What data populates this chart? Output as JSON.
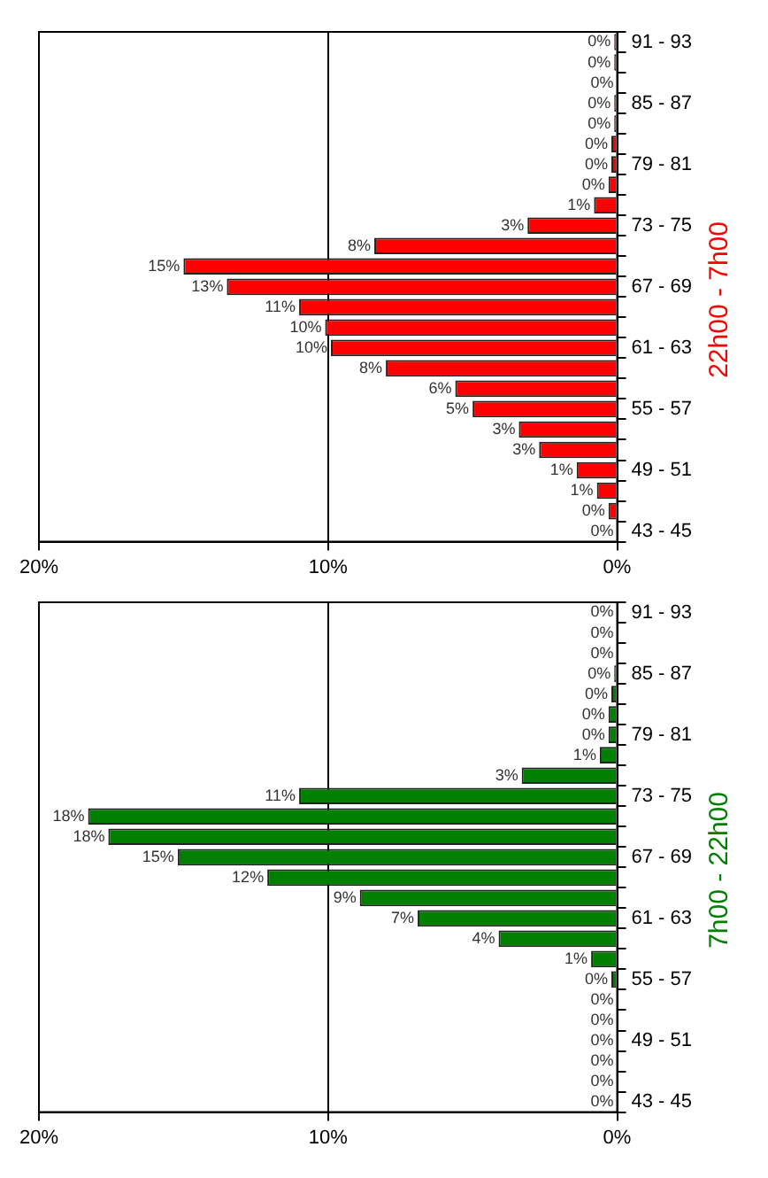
{
  "chart_data": [
    {
      "type": "bar",
      "orientation": "horizontal",
      "title": "22h00 - 7h00",
      "categories": [
        "91 - 93",
        null,
        null,
        "85 - 87",
        null,
        null,
        "79 - 81",
        null,
        null,
        "73 - 75",
        null,
        null,
        "67 - 69",
        null,
        null,
        "61 - 63",
        null,
        null,
        "55 - 57",
        null,
        null,
        "49 - 51",
        null,
        null,
        "43 - 45"
      ],
      "series": [
        {
          "color": "#ff0000",
          "values": [
            0.1,
            0.1,
            0,
            0.1,
            0.1,
            0.2,
            0.2,
            0.3,
            0.8,
            3.1,
            8.4,
            15.0,
            13.5,
            11.0,
            10.1,
            9.9,
            8.0,
            5.6,
            5.0,
            3.4,
            2.7,
            1.4,
            0.7,
            0.3,
            0
          ],
          "value_labels": [
            "0%",
            "0%",
            "0%",
            "0%",
            "0%",
            "0%",
            "0%",
            "0%",
            "1%",
            "3%",
            "8%",
            "15%",
            "13%",
            "11%",
            "10%",
            "10%",
            "8%",
            "6%",
            "5%",
            "3%",
            "3%",
            "1%",
            "1%",
            "0%",
            "0%"
          ]
        }
      ],
      "xlim": [
        20,
        0
      ],
      "xticks": [
        {
          "value": 0,
          "label": "0%"
        },
        {
          "value": 10,
          "label": "10%"
        },
        {
          "value": 20,
          "label": "20%"
        }
      ],
      "grid": "x",
      "legend": false
    },
    {
      "type": "bar",
      "orientation": "horizontal",
      "title": "7h00 - 22h00",
      "categories": [
        "91 - 93",
        null,
        null,
        "85 - 87",
        null,
        null,
        "79 - 81",
        null,
        null,
        "73 - 75",
        null,
        null,
        "67 - 69",
        null,
        null,
        "61 - 63",
        null,
        null,
        "55 - 57",
        null,
        null,
        "49 - 51",
        null,
        null,
        "43 - 45"
      ],
      "series": [
        {
          "color": "#008000",
          "values": [
            0,
            0,
            0,
            0.1,
            0.2,
            0.3,
            0.3,
            0.6,
            3.3,
            11.0,
            18.3,
            17.6,
            15.2,
            12.1,
            8.9,
            6.9,
            4.1,
            0.9,
            0.2,
            0,
            0,
            0,
            0,
            0,
            0
          ],
          "value_labels": [
            "0%",
            "0%",
            "0%",
            "0%",
            "0%",
            "0%",
            "0%",
            "1%",
            "3%",
            "11%",
            "18%",
            "18%",
            "15%",
            "12%",
            "9%",
            "7%",
            "4%",
            "1%",
            "0%",
            "0%",
            "0%",
            "0%",
            "0%",
            "0%",
            "0%"
          ]
        }
      ],
      "xlim": [
        20,
        0
      ],
      "xticks": [
        {
          "value": 0,
          "label": "0%"
        },
        {
          "value": 10,
          "label": "10%"
        },
        {
          "value": 20,
          "label": "20%"
        }
      ],
      "grid": "x",
      "legend": false
    }
  ]
}
